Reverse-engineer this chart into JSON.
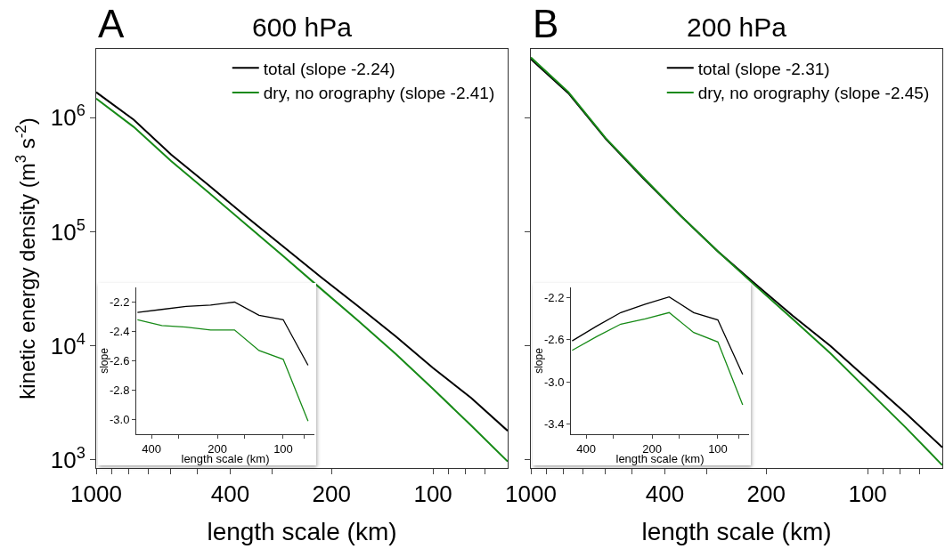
{
  "chart_data": [
    {
      "type": "line",
      "title": "600 hPa",
      "annotations": [
        "A"
      ],
      "xlabel": "length scale (km)",
      "ylabel": "kinetic energy density (m$^{3}$ s$^{-2}$)",
      "x": [
        1000,
        774,
        599,
        464,
        359,
        278,
        215,
        167,
        129,
        100,
        77,
        60
      ],
      "series": [
        {
          "name": "total (slope -2.24)",
          "color": "#000000",
          "values": [
            1670000,
            960000,
            475000,
            256000,
            136000,
            74000,
            40000,
            22300,
            12100,
            6400,
            3500,
            1800
          ]
        },
        {
          "name": "dry, no orography (slope -2.41)",
          "color": "#178a17",
          "values": [
            1470000,
            830000,
            416000,
            221000,
            116000,
            61000,
            31600,
            16700,
            8500,
            4200,
            2000,
            970
          ]
        }
      ],
      "log": "xy",
      "xlim": [
        1000,
        60
      ],
      "ylim": [
        850,
        4000000
      ],
      "xticks": [
        1000,
        {
          "value": 900,
          "label": null
        },
        {
          "value": 800,
          "label": null
        },
        {
          "value": 700,
          "label": null
        },
        {
          "value": 600,
          "label": null
        },
        {
          "value": 500,
          "label": null
        },
        400,
        {
          "value": 300,
          "label": null
        },
        200,
        100,
        {
          "value": 90,
          "label": null
        },
        {
          "value": 80,
          "label": null
        },
        {
          "value": 70,
          "label": null
        }
      ],
      "yticks": [
        {
          "value": 1000,
          "label": "10$^{3}$"
        },
        {
          "value": 10000,
          "label": "10$^{4}$"
        },
        {
          "value": 100000,
          "label": "10$^{5}$"
        },
        {
          "value": 1000000,
          "label": "10$^{6}$"
        }
      ],
      "grid": false,
      "legend": "top right"
    },
    {
      "type": "line",
      "xlabel": "length scale (km)",
      "ylabel": "slope",
      "x": [
        464,
        359,
        278,
        215,
        167,
        129,
        100,
        77
      ],
      "series": [
        {
          "color": "#000000",
          "values": [
            -2.27,
            -2.25,
            -2.23,
            -2.22,
            -2.2,
            -2.29,
            -2.32,
            -2.63
          ]
        },
        {
          "color": "#178a17",
          "values": [
            -2.32,
            -2.36,
            -2.37,
            -2.39,
            -2.39,
            -2.53,
            -2.59,
            -3.01
          ]
        }
      ],
      "log": "x",
      "xlim": [
        470,
        72
      ],
      "ylim": [
        -3.1,
        -2.1
      ],
      "xticks": [
        400,
        {
          "value": 300,
          "label": null
        },
        200,
        {
          "value": 150,
          "label": null
        },
        100,
        {
          "value": 80,
          "label": null
        }
      ],
      "yticks": [
        {
          "value": -3,
          "label": "-3.0"
        },
        -2.8,
        -2.6,
        -2.4,
        -2.2
      ],
      "grid": false
    },
    {
      "type": "line",
      "title": "200 hPa",
      "annotations": [
        "B"
      ],
      "xlabel": "length scale (km)",
      "x": [
        1000,
        774,
        599,
        464,
        359,
        278,
        215,
        167,
        129,
        100,
        77,
        60
      ],
      "series": [
        {
          "name": "total (slope -2.31)",
          "color": "#000000",
          "values": [
            3260000,
            1640000,
            650000,
            295000,
            138000,
            67000,
            34600,
            18400,
            10000,
            5100,
            2560,
            1290
          ]
        },
        {
          "name": "dry, no orography (slope -2.45)",
          "color": "#178a17",
          "values": [
            3370000,
            1680000,
            660000,
            300000,
            138000,
            67000,
            33500,
            17200,
            8600,
            4100,
            1920,
            900
          ]
        }
      ],
      "log": "xy",
      "xlim": [
        1000,
        60
      ],
      "ylim": [
        850,
        4000000
      ],
      "xticks": [
        {
          "value": 1000,
          "label": "1000"
        },
        {
          "value": 900,
          "label": null
        },
        {
          "value": 800,
          "label": null
        },
        {
          "value": 700,
          "label": null
        },
        {
          "value": 600,
          "label": null
        },
        {
          "value": 500,
          "label": null
        },
        400,
        {
          "value": 300,
          "label": null
        },
        200,
        100,
        {
          "value": 90,
          "label": null
        },
        {
          "value": 80,
          "label": null
        },
        {
          "value": 70,
          "label": null
        }
      ],
      "yticks": [
        {
          "value": 1000,
          "label": null
        },
        {
          "value": 10000,
          "label": null
        },
        {
          "value": 100000,
          "label": null
        },
        {
          "value": 1000000,
          "label": null
        }
      ],
      "tick_labels": "x",
      "grid": false,
      "legend": "top right"
    },
    {
      "type": "line",
      "xlabel": "length scale (km)",
      "ylabel": "slope",
      "x": [
        464,
        359,
        278,
        215,
        167,
        129,
        100,
        77
      ],
      "series": [
        {
          "color": "#000000",
          "values": [
            -2.61,
            -2.47,
            -2.34,
            -2.26,
            -2.19,
            -2.34,
            -2.41,
            -2.93
          ]
        },
        {
          "color": "#178a17",
          "values": [
            -2.7,
            -2.57,
            -2.45,
            -2.4,
            -2.34,
            -2.53,
            -2.62,
            -3.22
          ]
        }
      ],
      "log": "x",
      "xlim": [
        470,
        72
      ],
      "ylim": [
        -3.5,
        -2.1
      ],
      "xticks": [
        400,
        {
          "value": 300,
          "label": null
        },
        200,
        {
          "value": 150,
          "label": null
        },
        100,
        {
          "value": 80,
          "label": null
        }
      ],
      "yticks": [
        {
          "value": -3.4,
          "label": "-3.4"
        },
        {
          "value": -3,
          "label": "-3.0"
        },
        -2.6,
        -2.2
      ],
      "grid": false
    }
  ]
}
